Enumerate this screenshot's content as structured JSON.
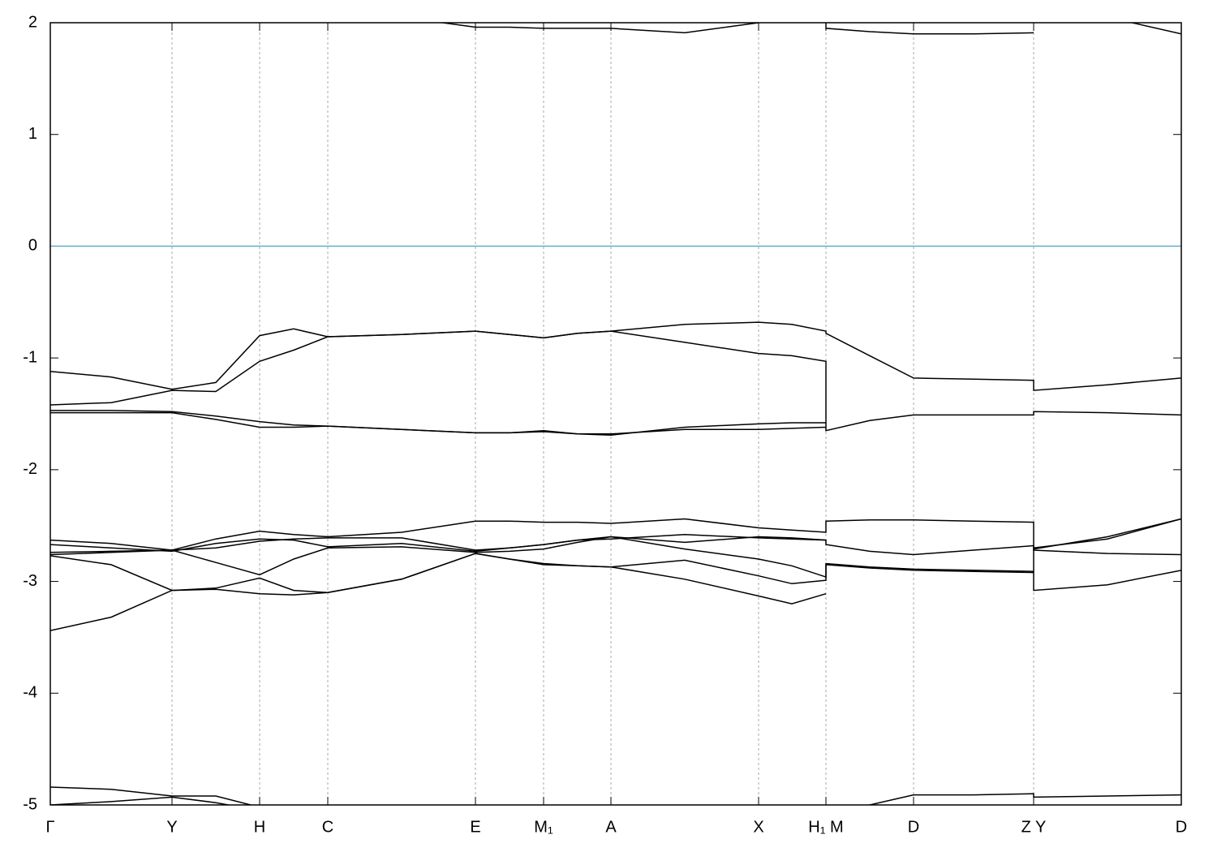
{
  "chart_data": {
    "type": "line",
    "xlim": [
      0,
      1394
    ],
    "ylim": [
      -5,
      2
    ],
    "yticks": [
      -5,
      -4,
      -3,
      -2,
      -1,
      0,
      1,
      2
    ],
    "xticks": [
      {
        "value": 0,
        "label": "Γ"
      },
      {
        "value": 150,
        "label": "Y"
      },
      {
        "value": 258,
        "label": "H"
      },
      {
        "value": 342,
        "label": "C"
      },
      {
        "value": 524,
        "label": "E"
      },
      {
        "value": 608,
        "label": "M₁"
      },
      {
        "value": 691,
        "label": "A"
      },
      {
        "value": 873,
        "label": "X"
      },
      {
        "value": 956,
        "label": "H₁ M"
      },
      {
        "value": 1064,
        "label": "D"
      },
      {
        "value": 1212,
        "label": "Z Y"
      },
      {
        "value": 1394,
        "label": "D"
      }
    ],
    "x_grid": true,
    "color": "#000000",
    "fermi_level": 0,
    "fermi_color": "#5fb3c8",
    "x": [
      0,
      75,
      150,
      204,
      258,
      300,
      342,
      433,
      524,
      566,
      608,
      650,
      691,
      782,
      873,
      914,
      956,
      956,
      1010,
      1064,
      1138,
      1212,
      1212,
      1303,
      1394
    ],
    "series": [
      {
        "values": [
          -1.12,
          -1.17,
          -1.28,
          -1.22,
          -0.8,
          -0.74,
          -0.81,
          -0.79,
          -0.76,
          -0.79,
          -0.82,
          -0.78,
          -0.76,
          -0.7,
          -0.68,
          -0.7,
          -0.76,
          -0.78,
          -0.98,
          -1.18,
          -1.19,
          -1.2,
          -1.29,
          -1.24,
          -1.18
        ]
      },
      {
        "values": [
          -1.42,
          -1.4,
          -1.29,
          -1.3,
          -1.03,
          -0.93,
          -0.81,
          -0.79,
          -0.76,
          -0.79,
          -0.82,
          -0.78,
          -0.76,
          -0.86,
          -0.96,
          -0.98,
          -1.03,
          -1.65,
          -1.56,
          -1.51,
          -1.51,
          -1.51,
          -1.48,
          -1.49,
          -1.51
        ]
      },
      {
        "values": [
          -1.47,
          -1.47,
          -1.48,
          -1.52,
          -1.57,
          -1.6,
          -1.61,
          -1.64,
          -1.67,
          -1.67,
          -1.65,
          -1.68,
          -1.68,
          -1.64,
          -1.64,
          -1.63,
          -1.62,
          null,
          null,
          null,
          null,
          null,
          null,
          null,
          null
        ]
      },
      {
        "values": [
          -1.49,
          -1.49,
          -1.49,
          -1.55,
          -1.62,
          -1.62,
          -1.61,
          -1.64,
          -1.67,
          -1.67,
          -1.66,
          -1.68,
          -1.69,
          -1.62,
          -1.59,
          -1.58,
          -1.58,
          null,
          null,
          null,
          null,
          null,
          null,
          null,
          null
        ]
      },
      {
        "values": [
          -2.63,
          -2.66,
          -2.72,
          -2.62,
          -2.55,
          -2.58,
          -2.6,
          -2.56,
          -2.46,
          -2.46,
          -2.47,
          -2.47,
          -2.48,
          -2.44,
          -2.52,
          -2.54,
          -2.56,
          -2.46,
          -2.45,
          -2.45,
          -2.46,
          -2.47,
          -2.7,
          -2.62,
          -2.44
        ]
      },
      {
        "values": [
          -2.67,
          -2.7,
          -2.73,
          -2.66,
          -2.62,
          -2.63,
          -2.69,
          -2.66,
          -2.73,
          -2.7,
          -2.67,
          -2.63,
          -2.6,
          -2.65,
          -2.6,
          -2.61,
          -2.63,
          -2.67,
          -2.73,
          -2.76,
          -2.72,
          -2.68,
          -2.72,
          -2.75,
          -2.76
        ]
      },
      {
        "values": [
          -2.74,
          -2.73,
          -2.72,
          -2.83,
          -2.94,
          -2.8,
          -2.7,
          -2.69,
          -2.74,
          -2.73,
          -2.71,
          -2.65,
          -2.6,
          -2.71,
          -2.8,
          -2.86,
          -2.96,
          -2.84,
          -2.87,
          -2.89,
          -2.9,
          -2.91,
          -2.71,
          -2.6,
          -2.44
        ]
      },
      {
        "values": [
          -2.77,
          -2.85,
          -3.08,
          -3.06,
          -2.97,
          -3.08,
          -3.1,
          -2.98,
          -2.75,
          -2.8,
          -2.84,
          -2.86,
          -2.87,
          -2.81,
          -2.95,
          -3.02,
          -2.99,
          -2.85,
          -2.88,
          -2.9,
          -2.91,
          -2.92,
          -3.08,
          -3.03,
          -2.9
        ]
      },
      {
        "values": [
          -3.44,
          -3.32,
          -3.08,
          -3.07,
          -3.11,
          -3.12,
          -3.1,
          -2.98,
          -2.75,
          -2.8,
          -2.85,
          -2.86,
          -2.87,
          -2.98,
          -3.13,
          -3.2,
          -3.11,
          null,
          null,
          null,
          null,
          null,
          null,
          null,
          null
        ]
      },
      {
        "values": [
          -2.76,
          -2.74,
          -2.72,
          -2.7,
          -2.64,
          -2.62,
          -2.61,
          -2.61,
          -2.72,
          -2.7,
          -2.67,
          -2.63,
          -2.62,
          -2.58,
          -2.61,
          -2.62,
          -2.63,
          null,
          null,
          null,
          null,
          null,
          null,
          null,
          null
        ]
      },
      {
        "values": [
          null,
          null,
          null,
          null,
          null,
          null,
          null,
          2.05,
          1.96,
          1.96,
          1.95,
          1.95,
          1.95,
          1.91,
          2.0,
          2.03,
          2.06,
          1.95,
          1.92,
          1.9,
          1.9,
          1.91,
          null,
          2.05,
          1.9
        ]
      },
      {
        "values": [
          -5.0,
          -4.97,
          -4.93,
          -4.98,
          -5.05,
          null,
          null,
          null,
          null,
          null,
          null,
          null,
          null,
          null,
          null,
          null,
          null,
          -5.1,
          -5.0,
          -4.91,
          -4.91,
          -4.9,
          -4.93,
          -4.92,
          -4.91
        ]
      },
      {
        "values": [
          -4.84,
          -4.86,
          -4.92,
          -4.92,
          -5.02,
          null,
          null,
          null,
          null,
          null,
          null,
          null,
          null,
          null,
          null,
          null,
          null,
          null,
          null,
          null,
          null,
          null,
          null,
          null,
          null
        ]
      }
    ]
  }
}
